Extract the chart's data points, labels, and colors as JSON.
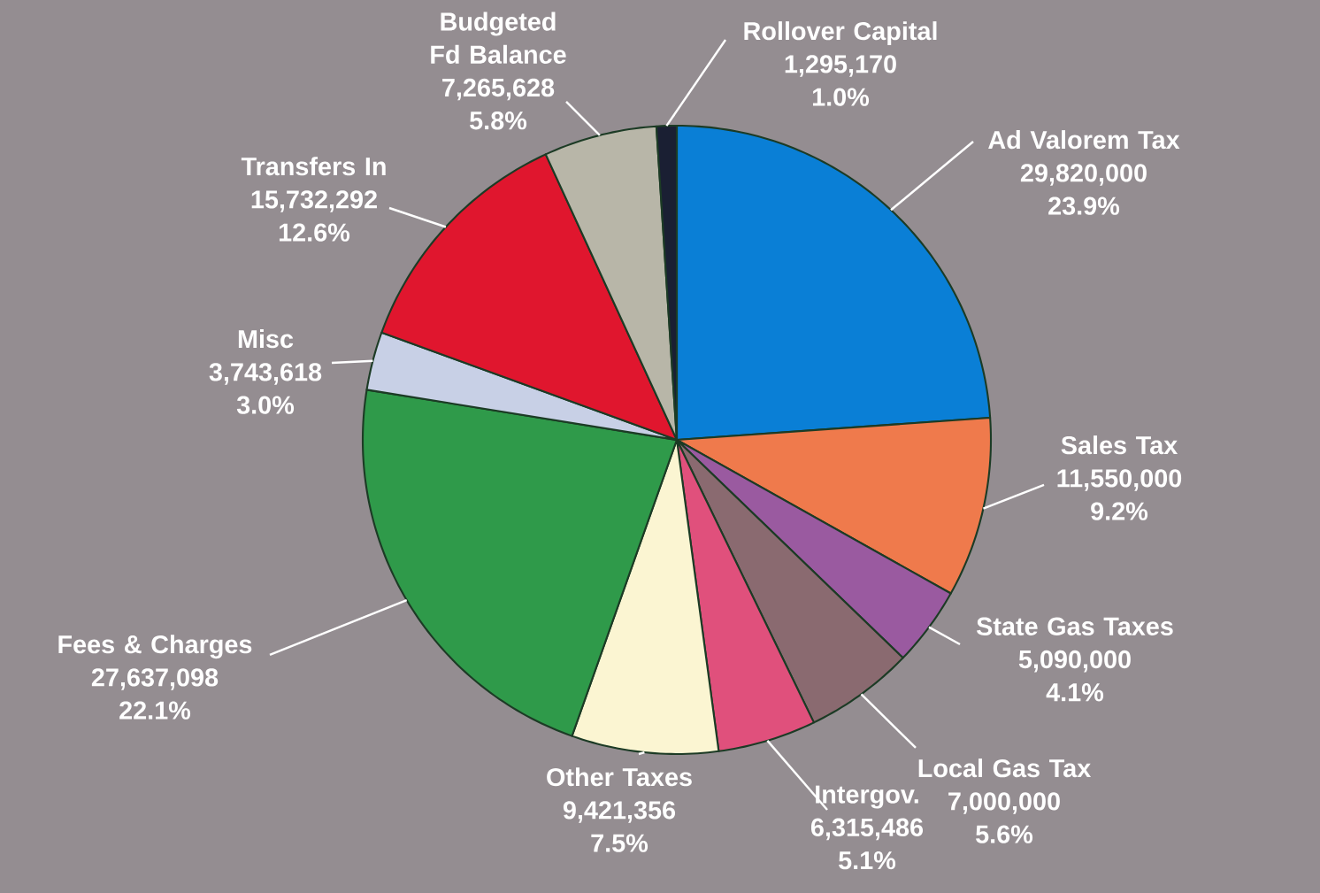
{
  "chart_data": {
    "type": "pie",
    "categories": [
      "Ad Valorem Tax",
      "Sales Tax",
      "State Gas Taxes",
      "Local Gas Tax",
      "Intergov.",
      "Other Taxes",
      "Fees & Charges",
      "Misc",
      "Transfers In",
      "Budgeted Fd Balance",
      "Rollover Capital"
    ],
    "values": [
      29820000,
      11550000,
      5090000,
      7000000,
      6315486,
      9421356,
      27637098,
      3743618,
      15732292,
      7265628,
      1295170
    ],
    "colors": [
      "#0a7fd6",
      "#ef7a4c",
      "#9a5aa0",
      "#8a6a70",
      "#e0507c",
      "#fbf5d2",
      "#2f9a4a",
      "#c8d0e6",
      "#e0162e",
      "#b8b6a8",
      "#1a1f33"
    ],
    "value_labels": [
      "29,820,000",
      "11,550,000",
      "5,090,000",
      "7,000,000",
      "6,315,486",
      "9,421,356",
      "27,637,098",
      "3,743,618",
      "15,732,292",
      "7,265,628",
      "1,295,170"
    ],
    "annotations": [
      {
        "text": "23.9%",
        "x": "Ad Valorem Tax"
      },
      {
        "text": "9.2%",
        "x": "Sales Tax"
      },
      {
        "text": "4.1%",
        "x": "State Gas Taxes"
      },
      {
        "text": "5.6%",
        "x": "Local Gas Tax"
      },
      {
        "text": "5.1%",
        "x": "Intergov."
      },
      {
        "text": "7.5%",
        "x": "Other Taxes"
      },
      {
        "text": "22.1%",
        "x": "Fees & Charges"
      },
      {
        "text": "3.0%",
        "x": "Misc"
      },
      {
        "text": "12.6%",
        "x": "Transfers In"
      },
      {
        "text": "5.8%",
        "x": "Budgeted Fd Balance"
      },
      {
        "text": "1.0%",
        "x": "Rollover Capital"
      }
    ]
  }
}
